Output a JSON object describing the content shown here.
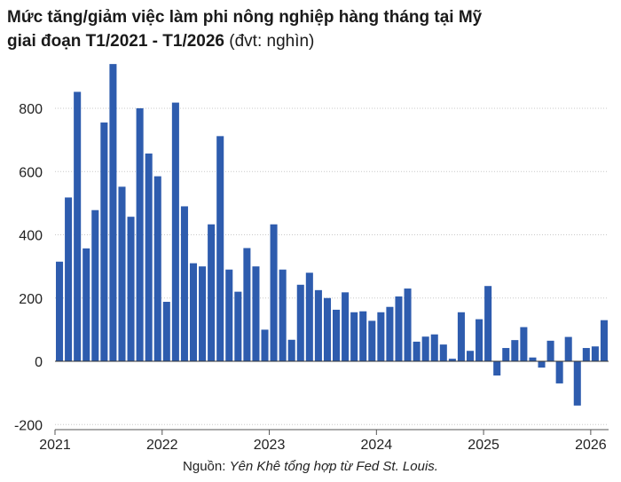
{
  "title": {
    "line1": "Mức tăng/giảm việc làm phi nông nghiệp hàng tháng tại Mỹ",
    "line2": "giai đoạn T1/2021 - T1/2026",
    "unit": "(đvt: nghìn)"
  },
  "source": {
    "prefix": "Nguồn: ",
    "text": "Yên Khê tổng hợp từ Fed St. Louis."
  },
  "colors": {
    "bar": "#2e5cae",
    "axis": "#555555",
    "grid": "#c8c8c8"
  },
  "chart_data": {
    "type": "bar",
    "xlabel": "",
    "ylabel": "",
    "ylim": [
      -200,
      950
    ],
    "yticks": [
      -200,
      0,
      200,
      400,
      600,
      800
    ],
    "ytick_labels": [
      "-200",
      "0",
      "200",
      "400",
      "600",
      "800"
    ],
    "grid": "horizontal",
    "x_start": "2021-01",
    "x_tick_labels": [
      "2021",
      "2022",
      "2023",
      "2024",
      "2025",
      "2026"
    ],
    "values": [
      315,
      518,
      852,
      357,
      478,
      755,
      940,
      552,
      457,
      800,
      657,
      585,
      188,
      818,
      490,
      310,
      300,
      433,
      712,
      290,
      220,
      358,
      300,
      100,
      433,
      290,
      68,
      242,
      280,
      225,
      200,
      163,
      218,
      155,
      158,
      128,
      155,
      172,
      205,
      230,
      62,
      78,
      85,
      53,
      8,
      155,
      33,
      133,
      238,
      -45,
      42,
      67,
      108,
      12,
      -20,
      65,
      -70,
      77,
      -140,
      42,
      47,
      130
    ]
  }
}
